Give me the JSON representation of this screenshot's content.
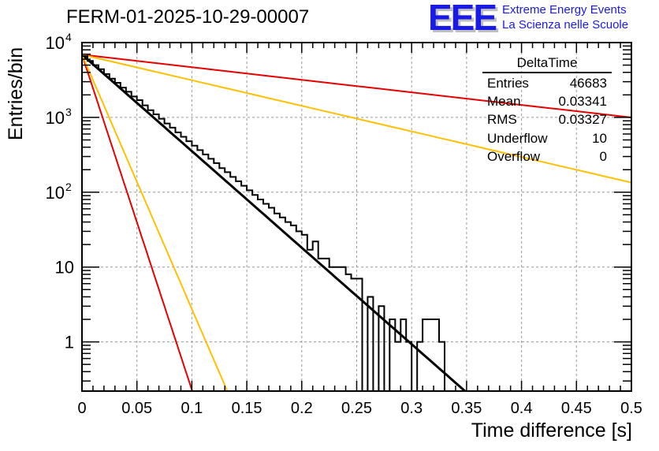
{
  "header": {
    "title": "FERM-01-2025-10-29-00007",
    "logo_mark": "EEE",
    "logo_line1": "Extreme Energy Events",
    "logo_line2": "La Scienza nelle Scuole"
  },
  "stats_box": {
    "title": "DeltaTime",
    "rows": [
      {
        "label": "Entries",
        "value": "46683"
      },
      {
        "label": "Mean",
        "value": "0.03341"
      },
      {
        "label": "RMS",
        "value": "0.03327"
      },
      {
        "label": "Underflow",
        "value": "10"
      },
      {
        "label": "Overflow",
        "value": "0"
      }
    ]
  },
  "colors": {
    "histogram": "#000000",
    "fit": "#000000",
    "red_curves": "#e60000",
    "yellow_curves": "#ffc000",
    "grid": "#999999",
    "logo": "#1a1ae6"
  },
  "chart_data": {
    "type": "bar",
    "subtype": "histogram-step",
    "title": "FERM-01-2025-10-29-00007",
    "xlabel": "Time difference [s]",
    "ylabel": "Entries/bin",
    "xlim": [
      0,
      0.5
    ],
    "ylim": [
      0.22,
      10000
    ],
    "yscale": "log",
    "grid": true,
    "x_ticks": [
      "0",
      "0.05",
      "0.1",
      "0.15",
      "0.2",
      "0.25",
      "0.3",
      "0.35",
      "0.4",
      "0.45",
      "0.5"
    ],
    "y_ticks": [
      {
        "value": 10000,
        "label": "10",
        "exp": "4"
      },
      {
        "value": 1000,
        "label": "10",
        "exp": "3"
      },
      {
        "value": 100,
        "label": "10",
        "exp": "2"
      },
      {
        "value": 10,
        "label": "10",
        "exp": ""
      },
      {
        "value": 1,
        "label": "1",
        "exp": ""
      }
    ],
    "bin_width": 0.005,
    "histogram": {
      "name": "DeltaTime",
      "values": [
        6600,
        5700,
        5000,
        4400,
        3800,
        3300,
        2900,
        2500,
        2200,
        1900,
        1700,
        1450,
        1250,
        1100,
        960,
        830,
        730,
        630,
        550,
        480,
        420,
        365,
        320,
        280,
        245,
        210,
        185,
        160,
        140,
        122,
        106,
        92,
        80,
        70,
        62,
        52,
        46,
        40,
        36,
        30,
        27,
        23,
        20,
        17,
        15,
        13,
        11,
        10,
        10,
        9,
        4,
        4,
        3,
        3,
        2,
        1.5,
        1,
        1,
        1,
        0.8,
        0.6,
        0.5,
        0,
        0,
        0,
        0,
        0,
        0,
        0,
        0
      ]
    },
    "histogram_tail": {
      "comment_free": true,
      "bins": [
        {
          "x0": 0.205,
          "value": 17
        },
        {
          "x0": 0.21,
          "value": 22
        },
        {
          "x0": 0.215,
          "value": 13
        },
        {
          "x0": 0.22,
          "value": 13
        },
        {
          "x0": 0.225,
          "value": 10
        },
        {
          "x0": 0.23,
          "value": 10
        },
        {
          "x0": 0.235,
          "value": 10
        },
        {
          "x0": 0.24,
          "value": 8
        },
        {
          "x0": 0.245,
          "value": 7
        },
        {
          "x0": 0.25,
          "value": 7
        },
        {
          "x0": 0.255,
          "value": 0
        },
        {
          "x0": 0.26,
          "value": 4
        },
        {
          "x0": 0.265,
          "value": 0
        },
        {
          "x0": 0.27,
          "value": 3
        },
        {
          "x0": 0.275,
          "value": 0
        },
        {
          "x0": 0.28,
          "value": 2
        },
        {
          "x0": 0.285,
          "value": 1
        },
        {
          "x0": 0.29,
          "value": 2
        },
        {
          "x0": 0.295,
          "value": 1
        },
        {
          "x0": 0.3,
          "value": 0
        },
        {
          "x0": 0.305,
          "value": 1
        },
        {
          "x0": 0.31,
          "value": 2
        },
        {
          "x0": 0.315,
          "value": 2
        },
        {
          "x0": 0.32,
          "value": 2
        },
        {
          "x0": 0.325,
          "value": 1
        },
        {
          "x0": 0.33,
          "value": 0
        }
      ]
    },
    "curves": [
      {
        "name": "fit",
        "color": "#000000",
        "amplitude": 6900,
        "decades_per_s": -12.9,
        "x_range": [
          0,
          0.35
        ]
      },
      {
        "name": "red-steep",
        "color": "#e60000",
        "amplitude": 6900,
        "decades_per_s": -44.8,
        "x_range": [
          0,
          0.102
        ]
      },
      {
        "name": "yellow-steep",
        "color": "#ffc000",
        "amplitude": 6900,
        "decades_per_s": -34.0,
        "x_range": [
          0,
          0.134
        ]
      },
      {
        "name": "red-shallow",
        "color": "#e60000",
        "amplitude": 6900,
        "decades_per_s": -1.68,
        "x_range": [
          0,
          0.5
        ]
      },
      {
        "name": "yellow-shallow",
        "color": "#ffc000",
        "amplitude": 6900,
        "decades_per_s": -3.42,
        "x_range": [
          0,
          0.5
        ]
      }
    ]
  }
}
